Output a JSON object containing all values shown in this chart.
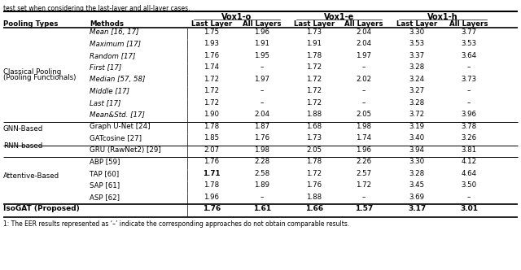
{
  "top_text": "test set when considering the last-layer and all-layer cases.",
  "footnote": "1: The EER results represented as ‘–’ indicate the corresponding approaches do not obtain comparable results.",
  "col_headers_bold": [
    "Vox1-o",
    "Vox1-e",
    "Vox1-h"
  ],
  "col_headers_sub": [
    "Last Layer",
    "All Layers",
    "Last Layer",
    "All Layers",
    "Last Layer",
    "All Layers"
  ],
  "groups": [
    {
      "group_label": "Classical Pooling\n(Pooling Functionals)",
      "rows": [
        {
          "method": "Mean [16, 17]",
          "italic": true,
          "values": [
            "1.75",
            "1.96",
            "1.73",
            "2.04",
            "3.30",
            "3.77"
          ],
          "bold_cols": []
        },
        {
          "method": "Maximum [17]",
          "italic": true,
          "values": [
            "1.93",
            "1.91",
            "1.91",
            "2.04",
            "3.53",
            "3.53"
          ],
          "bold_cols": []
        },
        {
          "method": "Random [17]",
          "italic": true,
          "values": [
            "1.76",
            "1.95",
            "1.78",
            "1.97",
            "3.37",
            "3.64"
          ],
          "bold_cols": []
        },
        {
          "method": "First [17]",
          "italic": true,
          "values": [
            "1.74",
            "–",
            "1.72",
            "–",
            "3.28",
            "–"
          ],
          "bold_cols": []
        },
        {
          "method": "Median [57, 58]",
          "italic": true,
          "values": [
            "1.72",
            "1.97",
            "1.72",
            "2.02",
            "3.24",
            "3.73"
          ],
          "bold_cols": []
        },
        {
          "method": "Middle [17]",
          "italic": true,
          "values": [
            "1.72",
            "–",
            "1.72",
            "–",
            "3.27",
            "–"
          ],
          "bold_cols": []
        },
        {
          "method": "Last [17]",
          "italic": true,
          "values": [
            "1.72",
            "–",
            "1.72",
            "–",
            "3.28",
            "–"
          ],
          "bold_cols": []
        },
        {
          "method": "Mean&Std. [17]",
          "italic": true,
          "values": [
            "1.90",
            "2.04",
            "1.88",
            "2.05",
            "3.72",
            "3.96"
          ],
          "bold_cols": []
        }
      ]
    },
    {
      "group_label": "GNN-Based",
      "rows": [
        {
          "method": "Graph U-Net [24]",
          "italic": false,
          "values": [
            "1.78",
            "1.87",
            "1.68",
            "1.98",
            "3.19",
            "3.78"
          ],
          "bold_cols": []
        },
        {
          "method": "GATcosine [27]",
          "italic": false,
          "values": [
            "1.85",
            "1.76",
            "1.73",
            "1.74",
            "3.40",
            "3.26"
          ],
          "bold_cols": []
        }
      ]
    },
    {
      "group_label": "RNN-based",
      "rows": [
        {
          "method": "GRU (RawNet2) [29]",
          "italic": false,
          "values": [
            "2.07",
            "1.98",
            "2.05",
            "1.96",
            "3.94",
            "3.81"
          ],
          "bold_cols": []
        }
      ]
    },
    {
      "group_label": "Attentive-Based",
      "rows": [
        {
          "method": "ABP [59]",
          "italic": false,
          "values": [
            "1.76",
            "2.28",
            "1.78",
            "2.26",
            "3.30",
            "4.12"
          ],
          "bold_cols": []
        },
        {
          "method": "TAP [60]",
          "italic": false,
          "values": [
            "1.71",
            "2.58",
            "1.72",
            "2.57",
            "3.28",
            "4.64"
          ],
          "bold_cols": [
            0
          ]
        },
        {
          "method": "SAP [61]",
          "italic": false,
          "values": [
            "1.78",
            "1.89",
            "1.76",
            "1.72",
            "3.45",
            "3.50"
          ],
          "bold_cols": []
        },
        {
          "method": "ASP [62]",
          "italic": false,
          "values": [
            "1.96",
            "–",
            "1.88",
            "–",
            "3.69",
            "–"
          ],
          "bold_cols": []
        }
      ]
    }
  ],
  "isogat_row": {
    "label": "IsoGAT (Proposed)",
    "values": [
      "1.76",
      "1.61",
      "1.66",
      "1.57",
      "3.17",
      "3.01"
    ],
    "bold_cols": [
      0,
      1,
      2,
      3,
      4,
      5
    ]
  }
}
